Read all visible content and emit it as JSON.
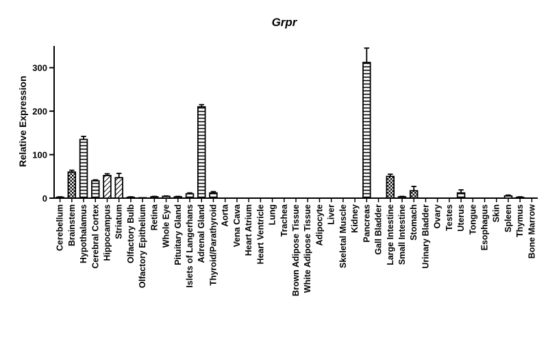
{
  "chart_data": {
    "type": "bar",
    "title": "Grpr",
    "xlabel": "",
    "ylabel": "Relative Expression",
    "ylim": [
      0,
      350
    ],
    "yticks": [
      0,
      100,
      200,
      300
    ],
    "grid": false,
    "legend": "none",
    "categories": [
      "Cerebellum",
      "Brainstem",
      "Hypothalamus",
      "Cerebral Cortex",
      "Hippocampus",
      "Striatum",
      "Olfactory Bulb",
      "Olfactory Epithelium",
      "Retina",
      "Whole Eye",
      "Pituitary Gland",
      "Islets of Langerhans",
      "Adrenal Gland",
      "Thyroid/Parathyroid",
      "Aorta",
      "Vena Cava",
      "Heart Atrium",
      "Heart Ventricle",
      "Lung",
      "Trachea",
      "Brown Adipose Tissue",
      "White Adipose Tissue",
      "Adipocyte",
      "Liver",
      "Skeletal Muscle",
      "Kidney",
      "Pancreas",
      "Gall Bladder",
      "Large Intestine",
      "Small Intestine",
      "Stomach",
      "Urinary Bladder",
      "Ovary",
      "Testes",
      "Uterus",
      "Tongue",
      "Esophagus",
      "Skin",
      "Spleen",
      "Thymus",
      "Bone Marrow"
    ],
    "values": [
      2,
      60,
      135,
      40,
      52,
      47,
      2,
      1,
      3,
      4,
      3,
      10,
      210,
      12,
      0,
      0,
      0,
      0,
      0,
      0,
      0,
      0,
      0,
      0,
      0,
      0,
      312,
      0,
      50,
      3,
      17,
      0,
      0,
      0,
      12,
      0,
      0,
      0,
      5,
      2,
      0
    ],
    "errors": [
      1,
      4,
      7,
      2,
      4,
      10,
      1,
      0,
      1,
      1,
      1,
      2,
      5,
      3,
      0,
      0,
      0,
      0,
      0,
      0,
      0,
      0,
      0,
      0,
      0,
      0,
      33,
      0,
      5,
      1,
      10,
      0,
      0,
      0,
      7,
      0,
      0,
      0,
      2,
      1,
      0
    ],
    "patterns": [
      "plain",
      "check",
      "hstripe",
      "hstripe",
      "diag",
      "diag",
      "plain",
      "plain",
      "plain",
      "plain",
      "plain",
      "hstripe",
      "hstripe",
      "hstripe",
      "plain",
      "plain",
      "plain",
      "plain",
      "plain",
      "plain",
      "plain",
      "plain",
      "plain",
      "plain",
      "plain",
      "plain",
      "hstripe",
      "plain",
      "check",
      "plain",
      "check",
      "plain",
      "plain",
      "plain",
      "hstripe",
      "plain",
      "plain",
      "plain",
      "plain",
      "plain",
      "plain"
    ]
  }
}
